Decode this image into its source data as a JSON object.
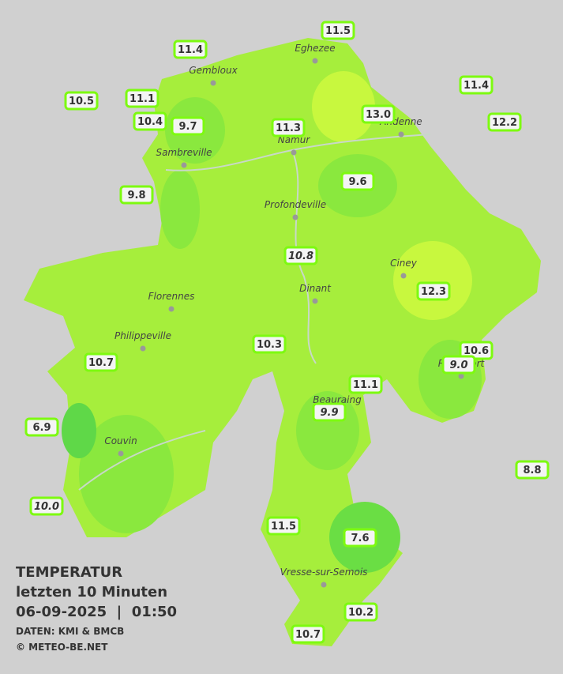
{
  "info": {
    "title": "TEMPERATUR",
    "subtitle": "letzten 10 Minuten",
    "datetime": "06-09-2025  |  01:50",
    "source": "DATEN: KMI & BMCB",
    "copyright": "© METEO-BE.NET"
  },
  "cities": [
    "Eghezee",
    "Gembloux",
    "Namur",
    "Andenne",
    "Sambreville",
    "Profondeville",
    "Ciney",
    "Florennes",
    "Dinant",
    "Philippeville",
    "Rochefort",
    "Beauraing",
    "Couvin",
    "Vresse-sur-Semois"
  ],
  "stations": [
    "11.5",
    "11.4",
    "11.4",
    "10.5",
    "11.1",
    "10.4",
    "9.7",
    "11.3",
    "13.0",
    "12.2",
    "9.8",
    "9.6",
    "10.8",
    "12.3",
    "10.3",
    "10.6",
    "9.0",
    "10.7",
    "11.1",
    "9.9",
    "6.9",
    "8.8",
    "10.0",
    "11.5",
    "7.6",
    "10.2",
    "10.7"
  ]
}
